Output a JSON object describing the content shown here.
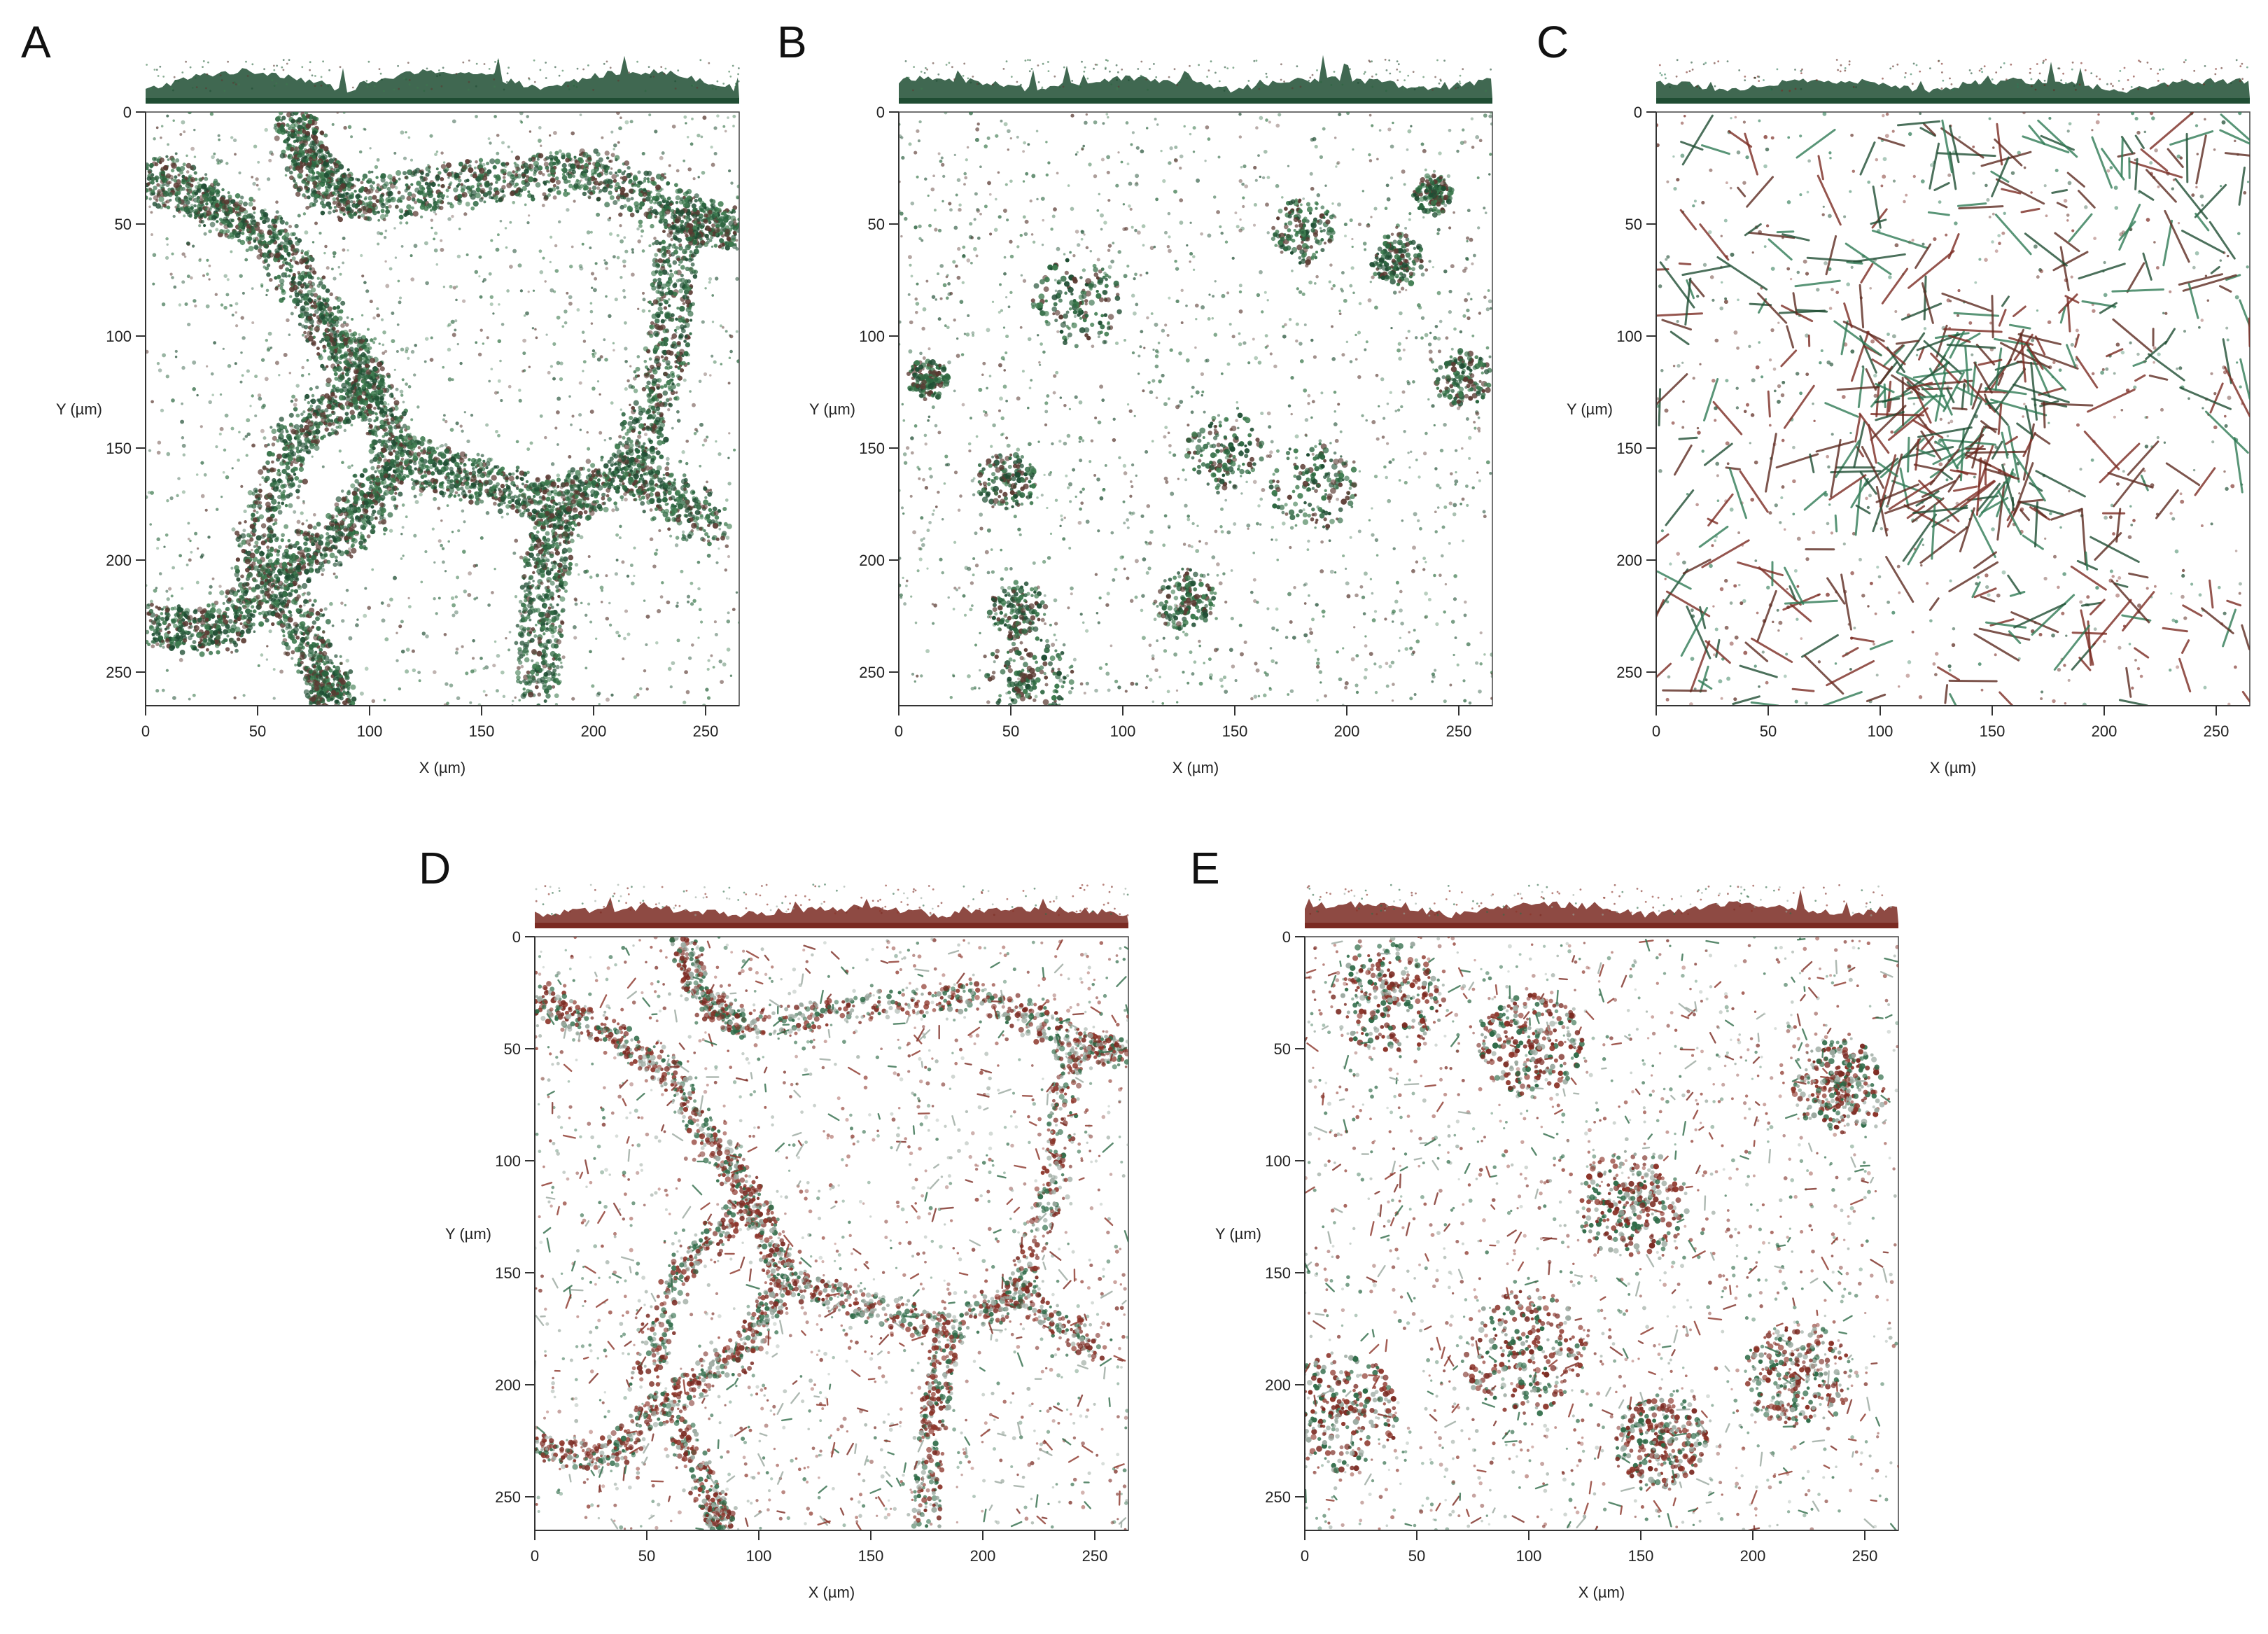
{
  "figure": {
    "panels": [
      {
        "id": "A",
        "letter": "A",
        "pattern": "cells",
        "profile_amp": 0.9,
        "palette": [
          "#1f4d33",
          "#2c6640",
          "#3d7a4e",
          "#5a3a32"
        ],
        "green_share": 0.92
      },
      {
        "id": "B",
        "letter": "B",
        "pattern": "blobs",
        "profile_amp": 0.55,
        "palette": [
          "#1f4d33",
          "#2c6640",
          "#3d7a4e",
          "#5a3a32"
        ],
        "green_share": 0.92
      },
      {
        "id": "C",
        "letter": "C",
        "pattern": "filaments",
        "profile_amp": 0.45,
        "palette": [
          "#1f4d33",
          "#2f7a55",
          "#7a2a22",
          "#5c2a20"
        ],
        "green_share": 0.55
      },
      {
        "id": "D",
        "letter": "D",
        "pattern": "network",
        "profile_amp": 0.3,
        "palette": [
          "#7a2a22",
          "#8b3328",
          "#2f6b48",
          "#9aa89f"
        ],
        "green_share": 0.3
      },
      {
        "id": "E",
        "letter": "E",
        "pattern": "clusters",
        "profile_amp": 0.5,
        "palette": [
          "#7a2a22",
          "#8b3328",
          "#2f6b48",
          "#9aa89f"
        ],
        "green_share": 0.3
      }
    ],
    "axes": {
      "xlabel": "X (µm)",
      "ylabel": "Y (µm)",
      "range": [
        0,
        265
      ],
      "ticks": [
        0,
        50,
        100,
        150,
        200,
        250
      ]
    }
  }
}
